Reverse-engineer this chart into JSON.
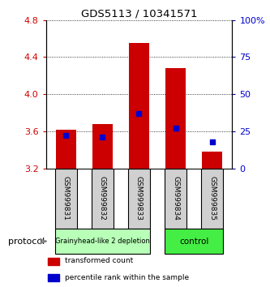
{
  "title": "GDS5113 / 10341571",
  "samples": [
    "GSM999831",
    "GSM999832",
    "GSM999833",
    "GSM999834",
    "GSM999835"
  ],
  "bar_top": [
    3.62,
    3.68,
    4.55,
    4.28,
    3.38
  ],
  "bar_bottom": 3.2,
  "percentile_rank": [
    22,
    21,
    37,
    27,
    18
  ],
  "ylim_left": [
    3.2,
    4.8
  ],
  "ylim_right": [
    0,
    100
  ],
  "yticks_left": [
    3.2,
    3.6,
    4.0,
    4.4,
    4.8
  ],
  "yticks_right": [
    0,
    25,
    50,
    75,
    100
  ],
  "bar_color": "#cc0000",
  "dot_color": "#0000cc",
  "groups": [
    {
      "label": "Grainyhead-like 2 depletion",
      "indices": [
        0,
        1,
        2
      ],
      "color": "#b8ffb8"
    },
    {
      "label": "control",
      "indices": [
        3,
        4
      ],
      "color": "#44ee44"
    }
  ],
  "protocol_label": "protocol",
  "bar_width": 0.55,
  "left_tick_color": "#cc0000",
  "right_tick_color": "#0000cc",
  "legend_items": [
    {
      "color": "#cc0000",
      "label": "transformed count"
    },
    {
      "color": "#0000cc",
      "label": "percentile rank within the sample"
    }
  ]
}
